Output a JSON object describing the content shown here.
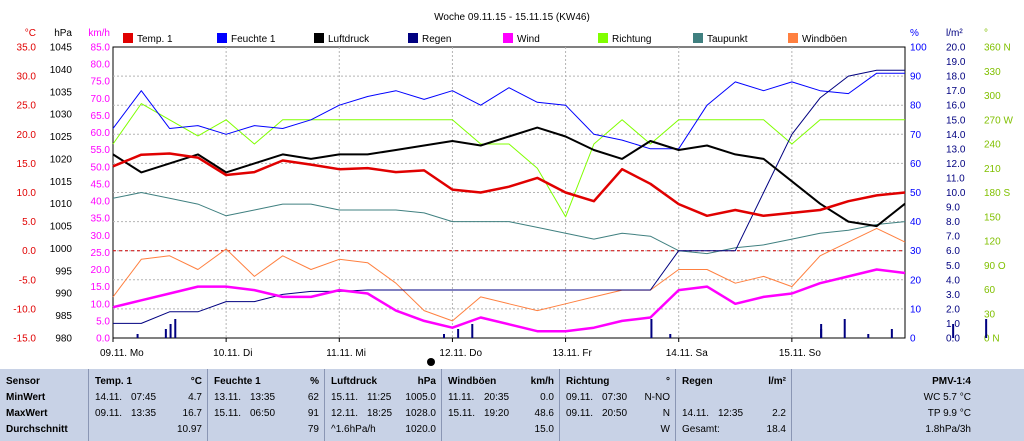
{
  "title": "Woche 09.11.15 - 15.11.15 (KW46)",
  "legend": [
    {
      "name": "Temp. 1",
      "color": "#e00000"
    },
    {
      "name": "Feuchte 1",
      "color": "#0000ff"
    },
    {
      "name": "Luftdruck",
      "color": "#000000"
    },
    {
      "name": "Regen",
      "color": "#000080"
    },
    {
      "name": "Wind",
      "color": "#ff00ff"
    },
    {
      "name": "Richtung",
      "color": "#80ff00"
    },
    {
      "name": "Taupunkt",
      "color": "#408080"
    },
    {
      "name": "Windböen",
      "color": "#ff8040"
    }
  ],
  "axes": {
    "temp": {
      "unit": "°C",
      "color": "#e00000",
      "ticks": [
        "35.0",
        "30.0",
        "25.0",
        "20.0",
        "15.0",
        "10.0",
        "5.0",
        "0.0",
        "-5.0",
        "-10.0",
        "-15.0"
      ]
    },
    "pressure": {
      "unit": "hPa",
      "color": "#000000",
      "ticks": [
        "1045",
        "1040",
        "1035",
        "1030",
        "1025",
        "1020",
        "1015",
        "1010",
        "1005",
        "1000",
        "995",
        "990",
        "985",
        "980"
      ]
    },
    "wind": {
      "unit": "km/h",
      "color": "#ff00ff",
      "ticks": [
        "85.0",
        "80.0",
        "75.0",
        "70.0",
        "65.0",
        "60.0",
        "55.0",
        "50.0",
        "45.0",
        "40.0",
        "35.0",
        "30.0",
        "25.0",
        "20.0",
        "15.0",
        "10.0",
        "5.0",
        "0.0"
      ]
    },
    "humidity": {
      "unit": "%",
      "color": "#0000ff",
      "ticks": [
        "100",
        "90",
        "80",
        "70",
        "60",
        "50",
        "40",
        "30",
        "20",
        "10",
        "0"
      ]
    },
    "rain": {
      "unit": "l/m²",
      "color": "#000080",
      "ticks": [
        "20.0",
        "19.0",
        "18.0",
        "17.0",
        "16.0",
        "15.0",
        "14.0",
        "13.0",
        "12.0",
        "11.0",
        "10.0",
        "9.0",
        "8.0",
        "7.0",
        "6.0",
        "5.0",
        "4.0",
        "3.0",
        "2.0",
        "1.0",
        "0.0"
      ]
    },
    "direction": {
      "unit": "°",
      "color": "#80c000",
      "ticks": [
        "360 N",
        "330",
        "300",
        "270 W",
        "240",
        "210",
        "180 S",
        "150",
        "120",
        "90 O",
        "60",
        "30",
        "0 N"
      ]
    }
  },
  "days": [
    "09.11. Mo",
    "10.11. Di",
    "11.11. Mi",
    "12.11. Do",
    "13.11. Fr",
    "14.11. Sa",
    "15.11. So"
  ],
  "chart_data": {
    "type": "line",
    "title": "Woche 09.11.15 - 15.11.15 (KW46)",
    "x": [
      "Mo",
      "Mo",
      "Mo",
      "Mo",
      "Di",
      "Di",
      "Di",
      "Di",
      "Mi",
      "Mi",
      "Mi",
      "Mi",
      "Do",
      "Do",
      "Do",
      "Do",
      "Fr",
      "Fr",
      "Fr",
      "Fr",
      "Sa",
      "Sa",
      "Sa",
      "Sa",
      "So",
      "So",
      "So",
      "So",
      "So"
    ],
    "series": [
      {
        "name": "Temp. 1",
        "unit": "°C",
        "values": [
          14.5,
          16.5,
          16.7,
          16.0,
          13.0,
          13.5,
          15.5,
          14.8,
          14.0,
          14.2,
          13.5,
          13.8,
          10.5,
          10.0,
          11.0,
          12.5,
          10.0,
          8.5,
          14.0,
          11.5,
          8.0,
          6.0,
          7.0,
          6.0,
          6.5,
          7.0,
          8.5,
          9.5,
          10.0
        ]
      },
      {
        "name": "Feuchte 1",
        "unit": "%",
        "values": [
          72,
          85,
          72,
          73,
          70,
          73,
          72,
          75,
          80,
          83,
          85,
          82,
          85,
          80,
          86,
          81,
          80,
          70,
          68,
          65,
          65,
          80,
          88,
          85,
          88,
          85,
          84,
          91,
          91
        ]
      },
      {
        "name": "Luftdruck",
        "unit": "hPa",
        "values": [
          1021.0,
          1017.0,
          1019.0,
          1021.0,
          1017.0,
          1019.0,
          1021.0,
          1020.0,
          1021.0,
          1021.0,
          1022.0,
          1023.0,
          1024.0,
          1023.0,
          1025.0,
          1027.0,
          1025.0,
          1022.0,
          1020.0,
          1024.0,
          1022.0,
          1023.0,
          1021.0,
          1020.0,
          1015.0,
          1010.0,
          1006.0,
          1005.0,
          1010.0
        ]
      },
      {
        "name": "Regen",
        "unit": "l/m²",
        "values": [
          1.0,
          1.0,
          1.8,
          1.8,
          2.5,
          2.5,
          3.0,
          3.2,
          3.2,
          3.3,
          3.3,
          3.3,
          3.3,
          3.3,
          3.3,
          3.3,
          3.3,
          3.3,
          3.3,
          3.3,
          6.0,
          6.0,
          6.0,
          10.0,
          14.0,
          16.5,
          18.0,
          18.4,
          18.4
        ]
      },
      {
        "name": "Wind",
        "unit": "km/h",
        "values": [
          9.0,
          11.0,
          13.0,
          15.0,
          15.0,
          14.0,
          12.0,
          12.0,
          14.0,
          13.0,
          8.0,
          5.0,
          3.0,
          6.0,
          4.0,
          2.0,
          2.0,
          3.0,
          5.0,
          6.0,
          14.0,
          15.0,
          10.0,
          12.0,
          13.0,
          16.0,
          18.0,
          20.0,
          19.0
        ]
      },
      {
        "name": "Richtung",
        "unit": "°",
        "values": [
          240,
          290,
          270,
          250,
          270,
          240,
          270,
          270,
          270,
          270,
          270,
          270,
          270,
          240,
          240,
          210,
          150,
          240,
          270,
          240,
          270,
          270,
          270,
          270,
          240,
          270,
          270,
          270,
          270
        ]
      },
      {
        "name": "Taupunkt",
        "unit": "°C",
        "values": [
          9.0,
          10.0,
          9.0,
          8.0,
          6.0,
          7.0,
          8.0,
          8.0,
          7.0,
          7.0,
          7.0,
          6.5,
          5.0,
          5.0,
          5.0,
          4.0,
          3.0,
          2.0,
          3.0,
          2.5,
          0.0,
          -0.5,
          0.5,
          1.0,
          2.0,
          3.0,
          3.5,
          4.5,
          5.0
        ]
      },
      {
        "name": "Windböen",
        "unit": "km/h",
        "values": [
          12.0,
          23.0,
          24.0,
          20.0,
          26.0,
          18.0,
          24.0,
          20.0,
          23.0,
          22.0,
          16.0,
          8.0,
          5.0,
          12.0,
          10.0,
          8.0,
          10.0,
          12.0,
          14.0,
          14.0,
          20.0,
          20.0,
          16.0,
          18.0,
          15.0,
          24.0,
          28.0,
          32.0,
          28.0
        ]
      }
    ],
    "rain_bars_hour_index": [
      5,
      11,
      12,
      13,
      70,
      73,
      76,
      114,
      118,
      150,
      150,
      155,
      160,
      165,
      178,
      185,
      195,
      200
    ]
  },
  "stats": {
    "row_labels": [
      "Sensor",
      "MinWert",
      "MaxWert",
      "Durchschnitt"
    ],
    "columns": [
      {
        "title": "Temp. 1",
        "unit": "°C",
        "rows": [
          [
            "14.11.",
            "07:45",
            "4.7"
          ],
          [
            "09.11.",
            "13:35",
            "16.7"
          ],
          [
            "",
            "",
            "10.97"
          ]
        ]
      },
      {
        "title": "Feuchte 1",
        "unit": "%",
        "rows": [
          [
            "13.11.",
            "13:35",
            "62"
          ],
          [
            "15.11.",
            "06:50",
            "91"
          ],
          [
            "",
            "",
            "79"
          ]
        ]
      },
      {
        "title": "Luftdruck",
        "unit": "hPa",
        "rows": [
          [
            "15.11.",
            "11:25",
            "1005.0"
          ],
          [
            "12.11.",
            "18:25",
            "1028.0"
          ],
          [
            "^1.6hPa/h",
            "",
            "1020.0"
          ]
        ]
      },
      {
        "title": "Windböen",
        "unit": "km/h",
        "rows": [
          [
            "11.11.",
            "20:35",
            "0.0"
          ],
          [
            "15.11.",
            "19:20",
            "48.6"
          ],
          [
            "",
            "",
            "15.0"
          ]
        ]
      },
      {
        "title": "Richtung",
        "unit": "°",
        "rows": [
          [
            "09.11.",
            "07:30",
            "N-NO"
          ],
          [
            "09.11.",
            "20:50",
            "N"
          ],
          [
            "",
            "",
            "W"
          ]
        ]
      },
      {
        "title": "Regen",
        "unit": "l/m²",
        "rows": [
          [
            "",
            "",
            ""
          ],
          [
            "14.11.",
            "12:35",
            "2.2"
          ],
          [
            "Gesamt:",
            "",
            "18.4"
          ]
        ]
      }
    ],
    "pmv": {
      "title": "PMV-1:4",
      "lines": [
        "WC 5.7 °C",
        "TP 9.9 °C",
        "1.8hPa/3h"
      ]
    }
  }
}
